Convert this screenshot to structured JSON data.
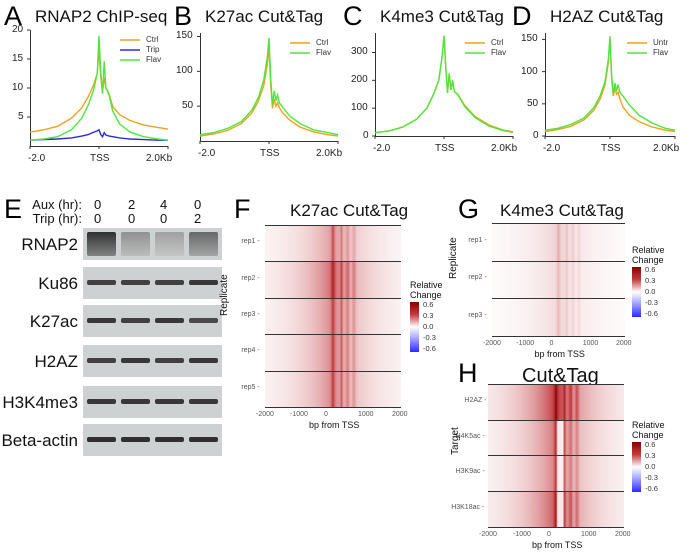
{
  "chart_data": [
    {
      "panel": "A",
      "type": "line",
      "title": "RNAP2 ChIP-seq",
      "x_ticks": [
        "-2.0",
        "TSS",
        "2.0Kb"
      ],
      "xlim": [
        -2000,
        2000
      ],
      "ylim": [
        0,
        20
      ],
      "y_ticks": [
        "5",
        "10",
        "15",
        "20"
      ],
      "legend": "top-right",
      "x": [
        -2000,
        -1600,
        -1200,
        -800,
        -500,
        -300,
        -150,
        -50,
        0,
        50,
        100,
        150,
        200,
        250,
        300,
        400,
        600,
        900,
        1300,
        1700,
        2000
      ],
      "series": [
        {
          "name": "Ctrl",
          "color": "#f0a020",
          "values": [
            2.4,
            2.8,
            3.4,
            4.8,
            6.6,
            8.6,
            10.6,
            12.6,
            16.5,
            12,
            9.2,
            11.8,
            10,
            9.6,
            8.8,
            6.8,
            5.4,
            4.4,
            3.6,
            3.2,
            2.9
          ]
        },
        {
          "name": "Trip",
          "color": "#2b2bd4",
          "values": [
            1.0,
            1.1,
            1.2,
            1.4,
            1.7,
            2.0,
            2.4,
            2.6,
            2.8,
            2.0,
            1.6,
            2.3,
            1.9,
            1.8,
            1.7,
            1.6,
            1.4,
            1.2,
            1.1,
            1.0,
            1.0
          ]
        },
        {
          "name": "Flav",
          "color": "#4ee63c",
          "values": [
            1.0,
            1.2,
            1.6,
            2.8,
            4.8,
            7.2,
            9.8,
            12.6,
            19.0,
            13,
            9.0,
            14.6,
            10,
            9.4,
            8.6,
            6.0,
            3.8,
            2.4,
            1.6,
            1.2,
            1.0
          ]
        }
      ]
    },
    {
      "panel": "B",
      "type": "line",
      "title": "K27ac Cut&Tag",
      "x_ticks": [
        "-2.0",
        "TSS",
        "2.0Kb"
      ],
      "xlim": [
        -2000,
        2000
      ],
      "ylim": [
        0,
        155
      ],
      "y_ticks": [
        "50",
        "100",
        "150"
      ],
      "legend": "top-right",
      "x": [
        -2000,
        -1600,
        -1200,
        -800,
        -500,
        -300,
        -150,
        -50,
        0,
        50,
        100,
        150,
        200,
        250,
        300,
        400,
        600,
        900,
        1300,
        1700,
        2000
      ],
      "series": [
        {
          "name": "Ctrl",
          "color": "#f0a020",
          "values": [
            7,
            10,
            15,
            25,
            40,
            58,
            80,
            110,
            135,
            80,
            47,
            60,
            50,
            55,
            48,
            40,
            30,
            20,
            13,
            9,
            7
          ]
        },
        {
          "name": "Flav",
          "color": "#4ee63c",
          "values": [
            9,
            12,
            18,
            28,
            44,
            63,
            88,
            120,
            148,
            90,
            52,
            72,
            58,
            66,
            55,
            48,
            36,
            25,
            16,
            12,
            9
          ]
        }
      ]
    },
    {
      "panel": "C",
      "type": "line",
      "title": "K4me3 Cut&Tag",
      "x_ticks": [
        "-2.0",
        "TSS",
        "2.0Kb"
      ],
      "xlim": [
        -2000,
        2000
      ],
      "ylim": [
        0,
        370
      ],
      "y_ticks": [
        "0",
        "100",
        "200",
        "300"
      ],
      "legend": "top-right",
      "x": [
        -2000,
        -1600,
        -1200,
        -800,
        -500,
        -300,
        -150,
        -50,
        0,
        50,
        100,
        150,
        200,
        250,
        300,
        400,
        600,
        900,
        1300,
        1700,
        2000
      ],
      "series": [
        {
          "name": "Ctrl",
          "color": "#f0a020",
          "values": [
            12,
            18,
            32,
            60,
            100,
            150,
            200,
            290,
            360,
            250,
            155,
            225,
            165,
            200,
            160,
            150,
            110,
            70,
            40,
            22,
            15
          ]
        },
        {
          "name": "Flav",
          "color": "#4ee63c",
          "values": [
            12,
            18,
            32,
            60,
            100,
            150,
            200,
            290,
            360,
            250,
            155,
            225,
            165,
            200,
            160,
            148,
            106,
            66,
            36,
            20,
            13
          ]
        }
      ]
    },
    {
      "panel": "D",
      "type": "line",
      "title": "H2AZ Cut&Tag",
      "x_ticks": [
        "-2.0",
        "TSS",
        "2.0Kb"
      ],
      "xlim": [
        -2000,
        2000
      ],
      "ylim": [
        0,
        160
      ],
      "y_ticks": [
        "0",
        "50",
        "100",
        "150"
      ],
      "legend": "top-right",
      "x": [
        -2000,
        -1600,
        -1200,
        -800,
        -500,
        -300,
        -150,
        -50,
        0,
        50,
        100,
        150,
        200,
        250,
        300,
        400,
        600,
        900,
        1300,
        1700,
        2000
      ],
      "series": [
        {
          "name": "Untr",
          "color": "#f0a020",
          "values": [
            7,
            10,
            15,
            25,
            40,
            58,
            80,
            115,
            152,
            90,
            62,
            75,
            65,
            68,
            58,
            45,
            32,
            22,
            14,
            9,
            7
          ]
        },
        {
          "name": "Flav",
          "color": "#4ee63c",
          "values": [
            9,
            12,
            18,
            28,
            44,
            63,
            85,
            120,
            155,
            95,
            65,
            82,
            70,
            80,
            68,
            62,
            48,
            32,
            20,
            12,
            9
          ]
        }
      ]
    },
    {
      "panel": "F",
      "type": "heatmap",
      "title": "K27ac Cut&Tag",
      "ylabel": "Replicate",
      "xlabel": "bp from TSS",
      "x_ticks": [
        "-2000",
        "-1000",
        "0",
        "1000",
        "2000"
      ],
      "xlim": [
        -2000,
        2000
      ],
      "rows": [
        "rep1",
        "rep2",
        "rep3",
        "rep4",
        "rep5"
      ],
      "colorbar": {
        "title": "Relative Change",
        "ticks": [
          "0.6",
          "0.3",
          "0.0",
          "-0.3",
          "-0.6"
        ],
        "range": [
          -0.6,
          0.6
        ]
      },
      "row_intensity": [
        0.3,
        0.45,
        0.36,
        0.36,
        0.36
      ]
    },
    {
      "panel": "G",
      "type": "heatmap",
      "title": "K4me3 Cut&Tag",
      "ylabel": "Replicate",
      "xlabel": "bp from TSS",
      "x_ticks": [
        "-2000",
        "-1000",
        "0",
        "1000",
        "2000"
      ],
      "xlim": [
        -2000,
        2000
      ],
      "rows": [
        "rep1",
        "rep2",
        "rep3"
      ],
      "colorbar": {
        "title": "Relative Change",
        "ticks": [
          "0.6",
          "0.3",
          "0.0",
          "-0.3",
          "-0.6"
        ],
        "range": [
          -0.6,
          0.6
        ]
      },
      "row_intensity": [
        0.14,
        0.12,
        0.12
      ]
    },
    {
      "panel": "H",
      "type": "heatmap",
      "title": "Cut&Tag",
      "ylabel": "Target",
      "xlabel": "bp from TSS",
      "x_ticks": [
        "-2000",
        "-1000",
        "0",
        "1000",
        "2000"
      ],
      "xlim": [
        -2000,
        2000
      ],
      "rows": [
        "H2AZ",
        "H4K5ac",
        "H3K9ac",
        "H3K18ac"
      ],
      "colorbar": {
        "title": "Relative Change",
        "ticks": [
          "0.6",
          "0.3",
          "0.0",
          "-0.3",
          "-0.6"
        ],
        "range": [
          -0.6,
          0.6
        ]
      },
      "row_intensity": [
        0.6,
        0.42,
        0.38,
        0.5
      ]
    }
  ],
  "panel_labels": {
    "A": "A",
    "B": "B",
    "C": "C",
    "D": "D",
    "E": "E",
    "F": "F",
    "G": "G",
    "H": "H"
  },
  "blot": {
    "header": [
      {
        "label": "Aux (hr):",
        "values": [
          "0",
          "2",
          "4",
          "0"
        ]
      },
      {
        "label": "Trip (hr):",
        "values": [
          "0",
          "0",
          "0",
          "2"
        ]
      }
    ],
    "rows": [
      {
        "label": "RNAP2",
        "band_intensity": [
          0.95,
          0.35,
          0.25,
          0.6
        ]
      },
      {
        "label": "Ku86",
        "band_intensity": [
          0.8,
          0.8,
          0.8,
          0.85
        ]
      },
      {
        "label": "K27ac",
        "band_intensity": [
          0.85,
          0.8,
          0.85,
          0.75
        ]
      },
      {
        "label": "H2AZ",
        "band_intensity": [
          0.8,
          0.85,
          0.8,
          0.85
        ]
      },
      {
        "label": "H3K4me3",
        "band_intensity": [
          0.85,
          0.85,
          0.85,
          0.85
        ]
      },
      {
        "label": "Beta-actin",
        "band_intensity": [
          0.9,
          0.9,
          0.9,
          0.9
        ]
      }
    ]
  }
}
